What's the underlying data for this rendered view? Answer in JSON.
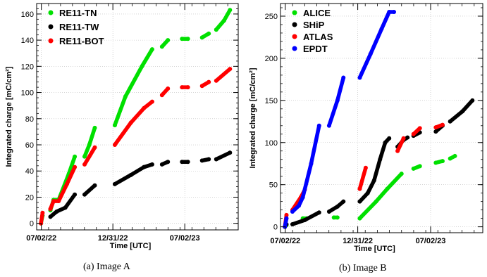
{
  "captions": {
    "a": "(a) Image A",
    "b": "(b) Image B"
  },
  "chart_data": [
    {
      "type": "scatter",
      "xlabel": "Time [UTC]",
      "ylabel": "Integrated charge [mC/cm²]",
      "x_ticks": [
        "07/02/22",
        "12/31/22",
        "07/02/23"
      ],
      "x_tick_values": [
        "2022-07-02",
        "2022-12-31",
        "2023-07-02"
      ],
      "xlim": [
        "2022-06-20",
        "2023-11-15"
      ],
      "ylim": [
        -5,
        168
      ],
      "y_ticks": [
        0,
        20,
        40,
        60,
        80,
        100,
        120,
        140,
        160
      ],
      "grid": true,
      "legend_position": "top-left",
      "series": [
        {
          "name": "RE11-TN",
          "color": "#00e000",
          "segments": [
            [
              [
                "2022-07-01",
                0
              ],
              [
                "2022-07-05",
                6
              ]
            ],
            [
              [
                "2022-07-25",
                10
              ],
              [
                "2022-08-02",
                18
              ],
              [
                "2022-08-15",
                18
              ],
              [
                "2022-09-10",
                38
              ],
              [
                "2022-09-25",
                51
              ]
            ],
            [
              [
                "2022-10-20",
                51
              ],
              [
                "2022-11-01",
                60
              ],
              [
                "2022-11-15",
                73
              ]
            ],
            [
              [
                "2023-01-05",
                75
              ],
              [
                "2023-02-01",
                97
              ],
              [
                "2023-03-15",
                120
              ],
              [
                "2023-04-10",
                133
              ]
            ],
            [
              [
                "2023-05-05",
                135
              ],
              [
                "2023-05-20",
                140
              ]
            ],
            [
              [
                "2023-06-25",
                141
              ],
              [
                "2023-07-10",
                141
              ]
            ],
            [
              [
                "2023-08-15",
                142
              ],
              [
                "2023-09-01",
                145
              ]
            ],
            [
              [
                "2023-09-20",
                148
              ],
              [
                "2023-10-10",
                155
              ],
              [
                "2023-10-25",
                163
              ]
            ]
          ]
        },
        {
          "name": "RE11-TW",
          "color": "#000000",
          "segments": [
            [
              [
                "2022-07-25",
                5
              ],
              [
                "2022-08-10",
                9
              ],
              [
                "2022-09-01",
                12
              ],
              [
                "2022-09-25",
                22
              ]
            ],
            [
              [
                "2022-10-20",
                22
              ],
              [
                "2022-11-15",
                29
              ]
            ],
            [
              [
                "2023-01-05",
                30
              ],
              [
                "2023-02-15",
                37
              ],
              [
                "2023-03-20",
                43
              ],
              [
                "2023-04-10",
                45
              ]
            ],
            [
              [
                "2023-05-05",
                45
              ],
              [
                "2023-05-20",
                47
              ]
            ],
            [
              [
                "2023-06-25",
                47
              ],
              [
                "2023-07-10",
                47
              ]
            ],
            [
              [
                "2023-08-15",
                48
              ],
              [
                "2023-09-01",
                49
              ]
            ],
            [
              [
                "2023-09-20",
                49
              ],
              [
                "2023-10-25",
                54
              ]
            ]
          ]
        },
        {
          "name": "RE11-BOT",
          "color": "#ff0000",
          "segments": [
            [
              [
                "2022-07-01",
                0
              ],
              [
                "2022-07-05",
                8
              ]
            ],
            [
              [
                "2022-07-25",
                11
              ],
              [
                "2022-08-02",
                17
              ],
              [
                "2022-08-15",
                17
              ],
              [
                "2022-09-05",
                30
              ],
              [
                "2022-09-25",
                43
              ]
            ],
            [
              [
                "2022-10-20",
                45
              ],
              [
                "2022-11-15",
                58
              ]
            ],
            [
              [
                "2023-01-05",
                60
              ],
              [
                "2023-02-15",
                77
              ],
              [
                "2023-03-20",
                88
              ],
              [
                "2023-04-10",
                93
              ]
            ],
            [
              [
                "2023-05-05",
                98
              ],
              [
                "2023-05-20",
                103
              ]
            ],
            [
              [
                "2023-06-25",
                104
              ],
              [
                "2023-07-10",
                104
              ]
            ],
            [
              [
                "2023-08-15",
                105
              ],
              [
                "2023-09-01",
                108
              ]
            ],
            [
              [
                "2023-09-20",
                109
              ],
              [
                "2023-10-25",
                118
              ]
            ]
          ]
        }
      ]
    },
    {
      "type": "scatter",
      "xlabel": "Time [UTC]",
      "ylabel": "Integrated charge [mC/cm²]",
      "x_ticks": [
        "07/02/22",
        "12/31/22",
        "07/02/23"
      ],
      "x_tick_values": [
        "2022-07-02",
        "2022-12-31",
        "2023-07-02"
      ],
      "xlim": [
        "2022-06-20",
        "2023-11-10"
      ],
      "ylim": [
        -7,
        265
      ],
      "y_ticks": [
        0,
        50,
        100,
        150,
        200,
        250
      ],
      "grid": true,
      "legend_position": "top-left",
      "series": [
        {
          "name": "ALICE",
          "color": "#00e000",
          "segments": [
            [
              [
                "2022-07-01",
                0
              ],
              [
                "2022-07-05",
                2
              ]
            ],
            [
              [
                "2022-08-15",
                10
              ],
              [
                "2022-08-25",
                10
              ]
            ],
            [
              [
                "2022-11-01",
                11
              ],
              [
                "2022-11-10",
                11
              ]
            ],
            [
              [
                "2023-01-05",
                10
              ],
              [
                "2023-02-15",
                30
              ],
              [
                "2023-03-15",
                45
              ],
              [
                "2023-04-20",
                63
              ]
            ],
            [
              [
                "2023-05-20",
                69
              ],
              [
                "2023-06-05",
                72
              ]
            ],
            [
              [
                "2023-07-15",
                76
              ],
              [
                "2023-08-01",
                78
              ]
            ],
            [
              [
                "2023-08-20",
                81
              ],
              [
                "2023-09-01",
                84
              ]
            ]
          ]
        },
        {
          "name": "SHiP",
          "color": "#000000",
          "segments": [
            [
              [
                "2022-07-01",
                0
              ],
              [
                "2022-07-05",
                3
              ]
            ],
            [
              [
                "2022-07-20",
                3
              ],
              [
                "2022-08-20",
                8
              ],
              [
                "2022-09-25",
                17
              ]
            ],
            [
              [
                "2022-10-20",
                18
              ],
              [
                "2022-11-10",
                24
              ],
              [
                "2022-11-25",
                30
              ]
            ],
            [
              [
                "2023-01-05",
                30
              ],
              [
                "2023-01-25",
                40
              ],
              [
                "2023-02-10",
                55
              ],
              [
                "2023-02-25",
                80
              ],
              [
                "2023-03-10",
                100
              ],
              [
                "2023-03-20",
                105
              ]
            ],
            [
              [
                "2023-04-10",
                95
              ],
              [
                "2023-04-25",
                103
              ],
              [
                "2023-05-05",
                106
              ]
            ],
            [
              [
                "2023-05-20",
                108
              ],
              [
                "2023-06-05",
                112
              ]
            ],
            [
              [
                "2023-07-15",
                113
              ],
              [
                "2023-08-01",
                120
              ]
            ],
            [
              [
                "2023-08-20",
                125
              ],
              [
                "2023-09-20",
                137
              ],
              [
                "2023-10-15",
                150
              ]
            ]
          ]
        },
        {
          "name": "ATLAS",
          "color": "#ff0000",
          "segments": [
            [
              [
                "2022-07-01",
                0
              ],
              [
                "2022-07-05",
                14
              ]
            ],
            [
              [
                "2022-07-20",
                20
              ],
              [
                "2022-08-10",
                35
              ],
              [
                "2022-08-20",
                44
              ]
            ],
            [
              [
                "2023-01-05",
                45
              ],
              [
                "2023-01-20",
                70
              ]
            ],
            [
              [
                "2023-04-10",
                90
              ],
              [
                "2023-04-25",
                105
              ]
            ],
            [
              [
                "2023-05-20",
                110
              ],
              [
                "2023-06-05",
                117
              ]
            ],
            [
              [
                "2023-07-15",
                118
              ],
              [
                "2023-08-01",
                121
              ]
            ]
          ]
        },
        {
          "name": "EPDT",
          "color": "#0000ff",
          "segments": [
            [
              [
                "2022-07-01",
                0
              ],
              [
                "2022-07-05",
                10
              ]
            ],
            [
              [
                "2022-07-20",
                18
              ],
              [
                "2022-08-05",
                25
              ],
              [
                "2022-08-15",
                35
              ],
              [
                "2022-09-05",
                75
              ],
              [
                "2022-09-25",
                120
              ]
            ],
            [
              [
                "2022-10-20",
                120
              ],
              [
                "2022-11-10",
                150
              ],
              [
                "2022-11-25",
                177
              ]
            ],
            [
              [
                "2023-01-05",
                177
              ],
              [
                "2023-02-01",
                205
              ],
              [
                "2023-03-01",
                235
              ],
              [
                "2023-03-20",
                255
              ],
              [
                "2023-04-01",
                255
              ]
            ]
          ]
        }
      ]
    }
  ]
}
